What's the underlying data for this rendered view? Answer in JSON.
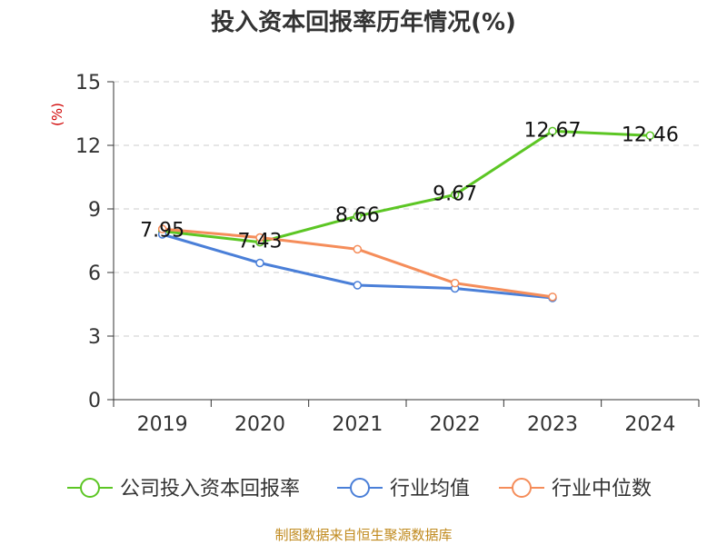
{
  "chart_data": {
    "type": "line",
    "title": "投入资本回报率历年情况(%)",
    "ylabel": "(%)",
    "xlabel": "",
    "categories": [
      "2019",
      "2020",
      "2021",
      "2022",
      "2023",
      "2024"
    ],
    "ylim": [
      0,
      15
    ],
    "yticks": [
      0,
      3,
      6,
      9,
      12,
      15
    ],
    "grid": true,
    "legend_position": "bottom",
    "series": [
      {
        "name": "公司投入资本回报率",
        "color": "#5cc624",
        "values": [
          7.95,
          7.43,
          8.66,
          9.67,
          12.67,
          12.46
        ],
        "labels": [
          "7.95",
          "7.43",
          "8.66",
          "9.67",
          "12.67",
          "12.46"
        ]
      },
      {
        "name": "行业均值",
        "color": "#4a7fd8",
        "values": [
          7.8,
          6.45,
          5.4,
          5.25,
          4.8,
          null
        ]
      },
      {
        "name": "行业中位数",
        "color": "#f58d5a",
        "values": [
          8.05,
          7.65,
          7.1,
          5.5,
          4.85,
          null
        ]
      }
    ],
    "source": "制图数据来自恒生聚源数据库"
  }
}
